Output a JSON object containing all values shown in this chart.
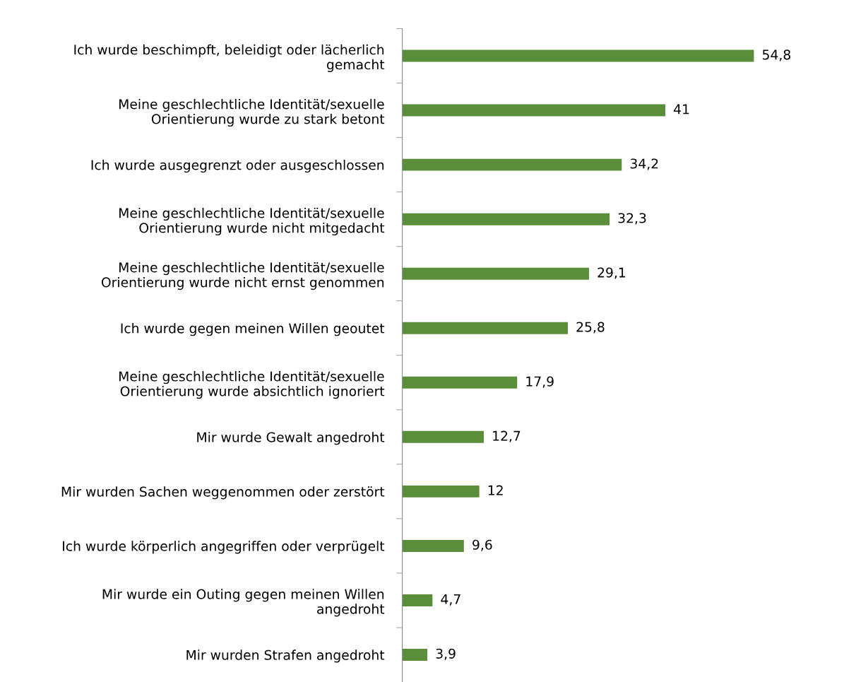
{
  "chart_data": {
    "type": "bar",
    "orientation": "horizontal",
    "categories": [
      "Ich wurde beschimpft, beleidigt oder lächerlich\ngemacht",
      "Meine geschlechtliche Identität/sexuelle\nOrientierung wurde zu stark betont",
      "Ich wurde ausgegrenzt oder ausgeschlossen",
      "Meine geschlechtliche Identität/sexuelle\nOrientierung wurde nicht mitgedacht",
      "Meine geschlechtliche Identität/sexuelle\nOrientierung wurde nicht ernst genommen",
      "Ich wurde gegen meinen Willen geoutet",
      "Meine geschlechtliche Identität/sexuelle\nOrientierung wurde absichtlich ignoriert",
      "Mir wurde Gewalt angedroht",
      "Mir wurden Sachen weggenommen oder zerstört",
      "Ich wurde körperlich angegriffen oder verprügelt",
      "Mir wurde ein Outing gegen meinen Willen\nangedroht",
      "Mir wurden Strafen angedroht"
    ],
    "values": [
      54.8,
      41,
      34.2,
      32.3,
      29.1,
      25.8,
      17.9,
      12.7,
      12,
      9.6,
      4.7,
      3.9
    ],
    "value_labels": [
      "54,8",
      "41",
      "34,2",
      "32,3",
      "29,1",
      "25,8",
      "17,9",
      "12,7",
      "12",
      "9,6",
      "4,7",
      "3,9"
    ],
    "color": "#5b8e3a",
    "grid": false,
    "legend": false
  }
}
